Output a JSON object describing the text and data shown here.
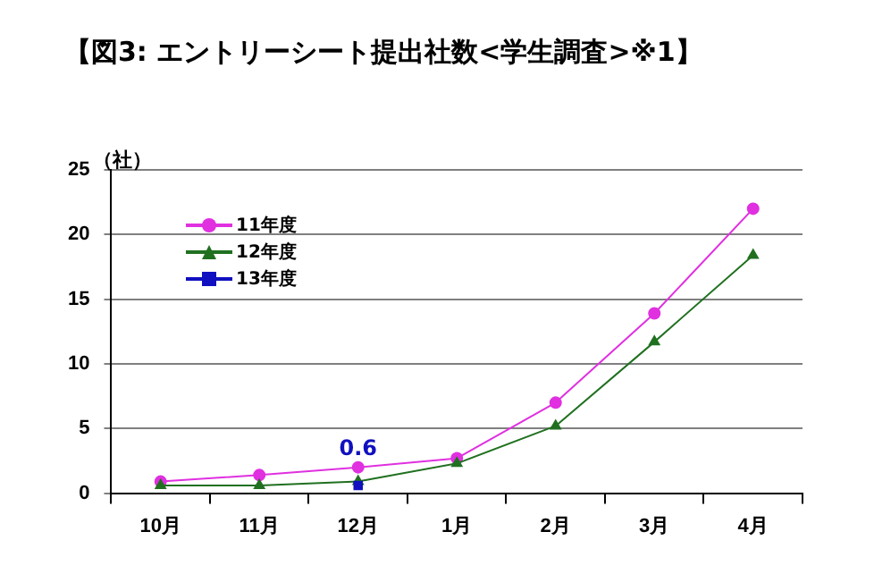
{
  "chart_data": {
    "type": "line",
    "title": "【図3: エントリーシート提出社数<学生調査>※1】",
    "ylabel": "（社）",
    "categories": [
      "10月",
      "11月",
      "12月",
      "1月",
      "2月",
      "3月",
      "4月"
    ],
    "series": [
      {
        "name": "11年度",
        "color": "#e030e0",
        "marker": "circle",
        "values": [
          0.9,
          1.4,
          2.0,
          2.7,
          7.0,
          13.9,
          22.0
        ]
      },
      {
        "name": "12年度",
        "color": "#207020",
        "marker": "triangle",
        "values": [
          0.6,
          0.6,
          0.9,
          2.3,
          5.2,
          11.7,
          18.4
        ]
      },
      {
        "name": "13年度",
        "color": "#1010c0",
        "marker": "square",
        "values": [
          null,
          null,
          0.6,
          null,
          null,
          null,
          null
        ],
        "value_labels": [
          null,
          null,
          "0.6",
          null,
          null,
          null,
          null
        ]
      }
    ],
    "ylim": [
      0,
      25
    ],
    "yticks": [
      0,
      5,
      10,
      15,
      20,
      25
    ],
    "grid": "y",
    "legend": "top left"
  }
}
